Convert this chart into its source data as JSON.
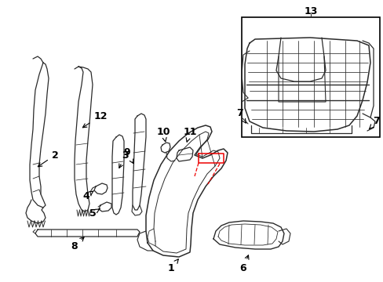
{
  "background_color": "#ffffff",
  "line_color": "#2a2a2a",
  "red_color": "#ee0000",
  "label_color": "#000000",
  "box_color": "#000000",
  "figsize": [
    4.89,
    3.6
  ],
  "dpi": 100
}
